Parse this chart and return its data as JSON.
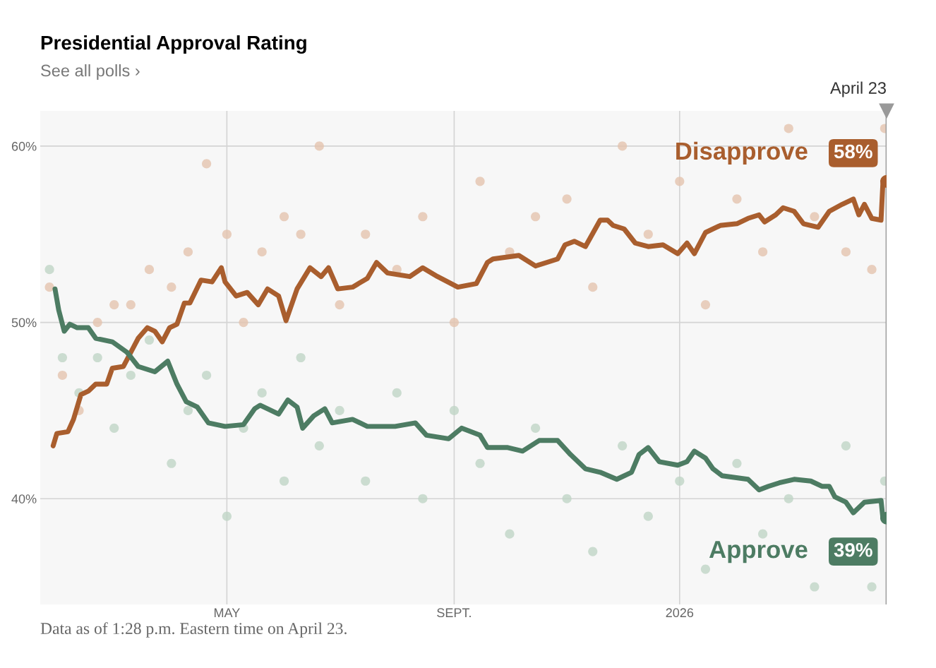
{
  "chart_data": {
    "type": "line",
    "title": "Presidential Approval Rating",
    "subtitle": "See all polls ›",
    "annotations": [
      "Data as of 1:28 p.m. Eastern time on April 23."
    ],
    "xlim": [
      "2025-01-20",
      "2026-04-23"
    ],
    "xticks": [
      {
        "value": "2025-05-01",
        "label": "MAY"
      },
      {
        "value": "2025-09-01",
        "label": "SEPT."
      },
      {
        "value": "2026-01-01",
        "label": "2026"
      }
    ],
    "ylim": [
      34,
      62
    ],
    "yticks": [
      {
        "value": 40,
        "label": "40%"
      },
      {
        "value": 50,
        "label": "50%"
      },
      {
        "value": 60,
        "label": "60%"
      }
    ],
    "grid": true,
    "legend": "right",
    "ref_lines": [
      {
        "axis": "x",
        "value": "2026-04-23",
        "label": "April 23",
        "color": "#999999"
      }
    ],
    "series": [
      {
        "type": "scatter",
        "color": "#e3c3ae",
        "marker": "circle",
        "x": [
          "2025-01-25",
          "2025-02-01",
          "2025-02-10",
          "2025-02-20",
          "2025-03-01",
          "2025-03-10",
          "2025-03-20",
          "2025-04-01",
          "2025-04-10",
          "2025-04-20",
          "2025-05-01",
          "2025-05-10",
          "2025-05-20",
          "2025-06-01",
          "2025-06-10",
          "2025-06-20",
          "2025-07-01",
          "2025-07-15",
          "2025-08-01",
          "2025-08-15",
          "2025-09-01",
          "2025-09-15",
          "2025-10-01",
          "2025-10-15",
          "2025-11-01",
          "2025-11-15",
          "2025-12-01",
          "2025-12-15",
          "2026-01-01",
          "2026-01-15",
          "2026-02-01",
          "2026-02-15",
          "2026-03-01",
          "2026-03-15",
          "2026-04-01",
          "2026-04-15",
          "2026-04-22"
        ],
        "values": [
          52,
          47,
          45,
          50,
          51,
          51,
          53,
          52,
          54,
          59,
          55,
          50,
          54,
          56,
          55,
          60,
          51,
          55,
          53,
          56,
          50,
          58,
          54,
          56,
          57,
          52,
          60,
          55,
          58,
          51,
          57,
          54,
          61,
          56,
          54,
          53,
          61
        ]
      },
      {
        "type": "scatter",
        "color": "#bfd5c6",
        "marker": "circle",
        "x": [
          "2025-01-25",
          "2025-02-01",
          "2025-02-10",
          "2025-02-20",
          "2025-03-01",
          "2025-03-10",
          "2025-03-20",
          "2025-04-01",
          "2025-04-10",
          "2025-04-20",
          "2025-05-01",
          "2025-05-10",
          "2025-05-20",
          "2025-06-01",
          "2025-06-10",
          "2025-06-20",
          "2025-07-01",
          "2025-07-15",
          "2025-08-01",
          "2025-08-15",
          "2025-09-01",
          "2025-09-15",
          "2025-10-01",
          "2025-10-15",
          "2025-11-01",
          "2025-11-15",
          "2025-12-01",
          "2025-12-15",
          "2026-01-01",
          "2026-01-15",
          "2026-02-01",
          "2026-02-15",
          "2026-03-01",
          "2026-03-15",
          "2026-04-01",
          "2026-04-15",
          "2026-04-22"
        ],
        "values": [
          53,
          48,
          46,
          48,
          44,
          47,
          49,
          42,
          45,
          47,
          39,
          44,
          46,
          41,
          48,
          43,
          45,
          41,
          46,
          40,
          45,
          42,
          38,
          44,
          40,
          37,
          43,
          39,
          41,
          36,
          42,
          38,
          40,
          35,
          43,
          35,
          41
        ]
      },
      {
        "name": "Disapprove",
        "color": "#a95e2e",
        "marker": "none",
        "line_style": "solid",
        "x": [
          "2025-01-27",
          "2025-01-29",
          "2025-02-04",
          "2025-02-07",
          "2025-02-11",
          "2025-02-15",
          "2025-02-19",
          "2025-02-25",
          "2025-02-28",
          "2025-03-06",
          "2025-03-10",
          "2025-03-14",
          "2025-03-19",
          "2025-03-23",
          "2025-03-27",
          "2025-03-31",
          "2025-04-04",
          "2025-04-08",
          "2025-04-11",
          "2025-04-17",
          "2025-04-23",
          "2025-04-28",
          "2025-04-30",
          "2025-05-06",
          "2025-05-12",
          "2025-05-18",
          "2025-05-23",
          "2025-05-29",
          "2025-06-02",
          "2025-06-08",
          "2025-06-15",
          "2025-06-21",
          "2025-06-25",
          "2025-06-30",
          "2025-07-08",
          "2025-07-16",
          "2025-07-21",
          "2025-07-27",
          "2025-08-08",
          "2025-08-15",
          "2025-08-23",
          "2025-09-03",
          "2025-09-13",
          "2025-09-19",
          "2025-09-22",
          "2025-10-06",
          "2025-10-15",
          "2025-10-21",
          "2025-10-27",
          "2025-10-31",
          "2025-11-05",
          "2025-11-11",
          "2025-11-19",
          "2025-11-23",
          "2025-11-26",
          "2025-12-02",
          "2025-12-08",
          "2025-12-15",
          "2025-12-23",
          "2025-12-31",
          "2026-01-05",
          "2026-01-09",
          "2026-01-15",
          "2026-01-23",
          "2026-02-01",
          "2026-02-07",
          "2026-02-13",
          "2026-02-16",
          "2026-02-22",
          "2026-02-26",
          "2026-03-04",
          "2026-03-09",
          "2026-03-17",
          "2026-03-23",
          "2026-03-30",
          "2026-04-05",
          "2026-04-08",
          "2026-04-11",
          "2026-04-15",
          "2026-04-20",
          "2026-04-21",
          "2026-04-23"
        ],
        "values": [
          43.0,
          43.7,
          43.8,
          44.5,
          45.9,
          46.1,
          46.5,
          46.5,
          47.4,
          47.5,
          48.3,
          49.1,
          49.7,
          49.5,
          48.9,
          49.7,
          49.9,
          51.1,
          51.1,
          52.4,
          52.3,
          53.1,
          52.3,
          51.5,
          51.7,
          51.0,
          51.9,
          51.5,
          50.1,
          51.9,
          53.1,
          52.6,
          53.1,
          51.9,
          52.0,
          52.5,
          53.4,
          52.8,
          52.6,
          53.1,
          52.6,
          52.0,
          52.2,
          53.4,
          53.6,
          53.8,
          53.2,
          53.4,
          53.6,
          54.4,
          54.6,
          54.3,
          55.8,
          55.8,
          55.5,
          55.3,
          54.5,
          54.3,
          54.4,
          53.9,
          54.5,
          53.9,
          55.1,
          55.5,
          55.6,
          55.9,
          56.1,
          55.7,
          56.1,
          56.5,
          56.3,
          55.6,
          55.4,
          56.3,
          56.7,
          57.0,
          56.1,
          56.7,
          55.9,
          55.8,
          57.9,
          58.0
        ],
        "value_labels": [
          null,
          null,
          null,
          null,
          null,
          null,
          null,
          null,
          null,
          null,
          null,
          null,
          null,
          null,
          null,
          null,
          null,
          null,
          null,
          null,
          null,
          null,
          null,
          null,
          null,
          null,
          null,
          null,
          null,
          null,
          null,
          null,
          null,
          null,
          null,
          null,
          null,
          null,
          null,
          null,
          null,
          null,
          null,
          null,
          null,
          null,
          null,
          null,
          null,
          null,
          null,
          null,
          null,
          null,
          null,
          null,
          null,
          null,
          null,
          null,
          null,
          null,
          null,
          null,
          null,
          null,
          null,
          null,
          null,
          null,
          null,
          null,
          null,
          null,
          null,
          null,
          null,
          null,
          null,
          null,
          null,
          "58%"
        ]
      },
      {
        "name": "Approve",
        "color": "#4d7c63",
        "marker": "none",
        "line_style": "solid",
        "x": [
          "2025-01-28",
          "2025-01-30",
          "2025-02-02",
          "2025-02-05",
          "2025-02-09",
          "2025-02-15",
          "2025-02-19",
          "2025-02-28",
          "2025-03-08",
          "2025-03-14",
          "2025-03-23",
          "2025-03-30",
          "2025-04-04",
          "2025-04-09",
          "2025-04-15",
          "2025-04-21",
          "2025-04-30",
          "2025-05-10",
          "2025-05-16",
          "2025-05-19",
          "2025-05-29",
          "2025-06-03",
          "2025-06-08",
          "2025-06-11",
          "2025-06-17",
          "2025-06-23",
          "2025-06-27",
          "2025-07-08",
          "2025-07-16",
          "2025-07-23",
          "2025-07-31",
          "2025-08-11",
          "2025-08-17",
          "2025-08-29",
          "2025-09-05",
          "2025-09-15",
          "2025-09-19",
          "2025-09-30",
          "2025-10-08",
          "2025-10-17",
          "2025-10-27",
          "2025-11-03",
          "2025-11-11",
          "2025-11-19",
          "2025-11-28",
          "2025-12-06",
          "2025-12-10",
          "2025-12-15",
          "2025-12-21",
          "2025-12-31",
          "2026-01-05",
          "2026-01-09",
          "2026-01-15",
          "2026-01-19",
          "2026-01-24",
          "2026-02-07",
          "2026-02-13",
          "2026-02-18",
          "2026-02-24",
          "2026-03-04",
          "2026-03-13",
          "2026-03-19",
          "2026-03-23",
          "2026-03-26",
          "2026-04-01",
          "2026-04-05",
          "2026-04-08",
          "2026-04-11",
          "2026-04-20",
          "2026-04-21",
          "2026-04-23"
        ],
        "values": [
          51.9,
          50.7,
          49.5,
          49.9,
          49.7,
          49.7,
          49.1,
          48.9,
          48.3,
          47.5,
          47.2,
          47.8,
          46.5,
          45.5,
          45.2,
          44.3,
          44.1,
          44.2,
          45.1,
          45.3,
          44.8,
          45.6,
          45.2,
          44.0,
          44.7,
          45.1,
          44.3,
          44.5,
          44.1,
          44.1,
          44.1,
          44.3,
          43.6,
          43.4,
          44.0,
          43.6,
          42.9,
          42.9,
          42.7,
          43.3,
          43.3,
          42.5,
          41.7,
          41.5,
          41.1,
          41.5,
          42.5,
          42.9,
          42.1,
          41.9,
          42.1,
          42.7,
          42.3,
          41.7,
          41.3,
          41.1,
          40.5,
          40.7,
          40.9,
          41.1,
          41.0,
          40.7,
          40.7,
          40.1,
          39.8,
          39.2,
          39.5,
          39.8,
          39.9,
          38.9,
          38.9
        ],
        "value_labels": [
          null,
          null,
          null,
          null,
          null,
          null,
          null,
          null,
          null,
          null,
          null,
          null,
          null,
          null,
          null,
          null,
          null,
          null,
          null,
          null,
          null,
          null,
          null,
          null,
          null,
          null,
          null,
          null,
          null,
          null,
          null,
          null,
          null,
          null,
          null,
          null,
          null,
          null,
          null,
          null,
          null,
          null,
          null,
          null,
          null,
          null,
          null,
          null,
          null,
          null,
          null,
          null,
          null,
          null,
          null,
          null,
          null,
          null,
          null,
          null,
          null,
          null,
          null,
          null,
          null,
          null,
          null,
          null,
          null,
          null,
          "39%"
        ]
      }
    ]
  }
}
